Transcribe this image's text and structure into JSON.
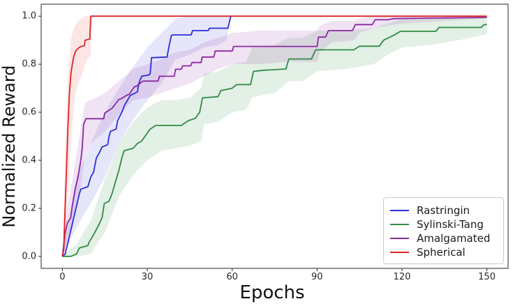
{
  "chart_data": {
    "type": "line",
    "title": "",
    "xlabel": "Epochs",
    "ylabel": "Normalized Reward",
    "xlim": [
      -7.5,
      157.5
    ],
    "ylim": [
      -0.05,
      1.05
    ],
    "x_ticks": [
      0,
      30,
      60,
      90,
      120,
      150
    ],
    "y_ticks": [
      0.0,
      0.2,
      0.4,
      0.6,
      0.8,
      1.0
    ],
    "y_tick_labels": [
      "0.0",
      "0.2",
      "0.4",
      "0.6",
      "0.8",
      "1.0"
    ],
    "grid": false,
    "legend_position": "lower right",
    "axis_color": "#262626",
    "series": [
      {
        "name": "Rastringin",
        "color": "#2d2dd6",
        "band_color": "rgba(80,80,220,0.14)",
        "x": [
          0,
          1,
          2,
          3,
          4,
          5,
          6,
          6.5,
          9,
          10,
          11,
          12,
          13,
          14,
          16,
          16.5,
          17,
          19,
          19.5,
          21,
          22,
          24,
          26.5,
          27,
          28,
          30.5,
          31,
          31.5,
          37,
          37.5,
          38.5,
          39,
          45.5,
          46,
          51.5,
          52,
          58.5,
          59.5,
          60
        ],
        "y": [
          0,
          0.01,
          0.06,
          0.11,
          0.16,
          0.21,
          0.26,
          0.28,
          0.29,
          0.33,
          0.35,
          0.41,
          0.43,
          0.455,
          0.465,
          0.5,
          0.52,
          0.53,
          0.565,
          0.6,
          0.63,
          0.67,
          0.685,
          0.72,
          0.75,
          0.755,
          0.76,
          0.827,
          0.83,
          0.865,
          0.92,
          0.922,
          0.922,
          0.94,
          0.94,
          0.95,
          0.95,
          1.0,
          1.0
        ],
        "band": {
          "x": [
            0,
            5,
            10,
            15,
            20,
            25,
            30,
            35,
            40,
            45,
            50,
            55,
            58,
            59.5,
            60
          ],
          "lo": [
            0,
            0.12,
            0.22,
            0.33,
            0.47,
            0.57,
            0.65,
            0.72,
            0.82,
            0.84,
            0.87,
            0.88,
            0.9,
            1.0,
            1.0
          ],
          "hi": [
            0,
            0.33,
            0.47,
            0.6,
            0.7,
            0.79,
            0.87,
            0.93,
            0.99,
            1.0,
            1.0,
            1.0,
            1.0,
            1.0,
            1.0
          ]
        }
      },
      {
        "name": "Sylinski-Tang",
        "color": "#2f8b45",
        "band_color": "rgba(60,150,80,0.14)",
        "x": [
          0,
          3,
          5,
          6,
          9,
          9.5,
          10.5,
          11.5,
          13,
          14,
          14.8,
          16.5,
          17.5,
          19,
          20,
          21,
          21.8,
          25,
          26.5,
          28,
          29.5,
          31,
          33,
          42,
          44.5,
          47,
          48.5,
          49.5,
          55,
          56,
          60,
          61.5,
          66.5,
          67.5,
          71,
          79,
          80,
          88,
          89.5,
          103,
          105,
          112,
          113.5,
          117,
          119.5,
          132,
          133,
          148,
          149,
          150
        ],
        "y": [
          0,
          0.0,
          0.01,
          0.035,
          0.045,
          0.06,
          0.08,
          0.1,
          0.135,
          0.16,
          0.22,
          0.23,
          0.26,
          0.32,
          0.36,
          0.41,
          0.44,
          0.45,
          0.47,
          0.48,
          0.505,
          0.53,
          0.545,
          0.545,
          0.565,
          0.575,
          0.6,
          0.66,
          0.665,
          0.69,
          0.7,
          0.715,
          0.715,
          0.77,
          0.775,
          0.78,
          0.822,
          0.822,
          0.86,
          0.86,
          0.875,
          0.875,
          0.9,
          0.92,
          0.937,
          0.937,
          0.953,
          0.953,
          0.965,
          0.965
        ],
        "band": {
          "x": [
            0,
            5,
            10,
            15,
            20,
            25,
            30,
            35,
            40,
            45,
            49,
            50,
            55,
            60,
            65,
            67,
            70,
            75,
            80,
            85,
            90,
            100,
            110,
            115,
            120,
            130,
            140,
            150
          ],
          "lo": [
            0,
            0.0,
            0.01,
            0.1,
            0.25,
            0.34,
            0.4,
            0.44,
            0.45,
            0.46,
            0.48,
            0.55,
            0.56,
            0.6,
            0.61,
            0.66,
            0.67,
            0.68,
            0.73,
            0.73,
            0.77,
            0.78,
            0.8,
            0.84,
            0.87,
            0.88,
            0.9,
            0.925
          ],
          "hi": [
            0,
            0.05,
            0.15,
            0.32,
            0.47,
            0.56,
            0.62,
            0.65,
            0.65,
            0.66,
            0.7,
            0.76,
            0.77,
            0.8,
            0.81,
            0.87,
            0.87,
            0.88,
            0.91,
            0.91,
            0.94,
            0.94,
            0.95,
            0.97,
            0.99,
            0.99,
            0.995,
            0.995
          ]
        }
      },
      {
        "name": "Amalgamated",
        "color": "#8a28a0",
        "band_color": "rgba(150,60,170,0.14)",
        "x": [
          0,
          1,
          1.8,
          2.9,
          3.5,
          4.5,
          5.5,
          6.5,
          7,
          7.5,
          8.3,
          14.6,
          15,
          17.5,
          20,
          20.5,
          23,
          23.5,
          25.5,
          26,
          27.5,
          28.5,
          33.8,
          34.3,
          39.5,
          40,
          42,
          42.5,
          45.3,
          45.8,
          49,
          49.4,
          53.5,
          54,
          60,
          60.5,
          90,
          90.5,
          93,
          94,
          102.5,
          103.5,
          109.5,
          110.5,
          115,
          117,
          150
        ],
        "y": [
          0,
          0.1,
          0.14,
          0.16,
          0.21,
          0.28,
          0.33,
          0.4,
          0.45,
          0.55,
          0.573,
          0.573,
          0.597,
          0.616,
          0.654,
          0.654,
          0.673,
          0.673,
          0.707,
          0.707,
          0.721,
          0.73,
          0.73,
          0.75,
          0.75,
          0.779,
          0.779,
          0.793,
          0.793,
          0.807,
          0.807,
          0.83,
          0.83,
          0.855,
          0.855,
          0.874,
          0.874,
          0.913,
          0.913,
          0.94,
          0.94,
          0.965,
          0.965,
          0.985,
          0.985,
          0.99,
          0.995
        ],
        "band": {
          "x": [
            0,
            2,
            4,
            6,
            8,
            10,
            15,
            20,
            25,
            30,
            35,
            40,
            45,
            50,
            55,
            60,
            70,
            80,
            90,
            91,
            95,
            103,
            105,
            110,
            115,
            120,
            150
          ],
          "lo": [
            0,
            0.08,
            0.15,
            0.25,
            0.42,
            0.47,
            0.52,
            0.59,
            0.65,
            0.66,
            0.68,
            0.7,
            0.72,
            0.75,
            0.78,
            0.8,
            0.8,
            0.81,
            0.81,
            0.85,
            0.89,
            0.9,
            0.93,
            0.95,
            0.96,
            0.97,
            0.99
          ],
          "hi": [
            0,
            0.22,
            0.35,
            0.5,
            0.64,
            0.65,
            0.68,
            0.73,
            0.78,
            0.8,
            0.82,
            0.85,
            0.86,
            0.89,
            0.91,
            0.93,
            0.94,
            0.94,
            0.94,
            0.96,
            0.98,
            0.98,
            0.99,
            1.0,
            1.0,
            1.0,
            1.0
          ]
        }
      },
      {
        "name": "Spherical",
        "color": "#e02222",
        "band_color": "rgba(235,80,80,0.15)",
        "x": [
          0,
          0.5,
          1,
          1.5,
          2,
          2.5,
          3,
          3.5,
          4,
          4.5,
          5,
          6,
          7,
          7.8,
          8,
          9.7,
          10,
          150
        ],
        "y": [
          0,
          0.03,
          0.22,
          0.38,
          0.55,
          0.68,
          0.76,
          0.8,
          0.83,
          0.85,
          0.86,
          0.87,
          0.875,
          0.878,
          0.9,
          0.905,
          1.0,
          1.0
        ],
        "band": {
          "x": [
            0,
            1,
            2,
            3,
            4,
            5,
            6,
            7,
            8,
            9,
            10,
            10.5,
            150
          ],
          "lo": [
            0,
            0.01,
            0.25,
            0.48,
            0.62,
            0.7,
            0.73,
            0.76,
            0.8,
            0.82,
            0.84,
            1.0,
            1.0
          ],
          "hi": [
            0,
            0.45,
            0.75,
            0.9,
            0.95,
            0.97,
            0.985,
            0.99,
            1.0,
            1.0,
            1.0,
            1.0,
            1.0
          ]
        }
      }
    ]
  }
}
